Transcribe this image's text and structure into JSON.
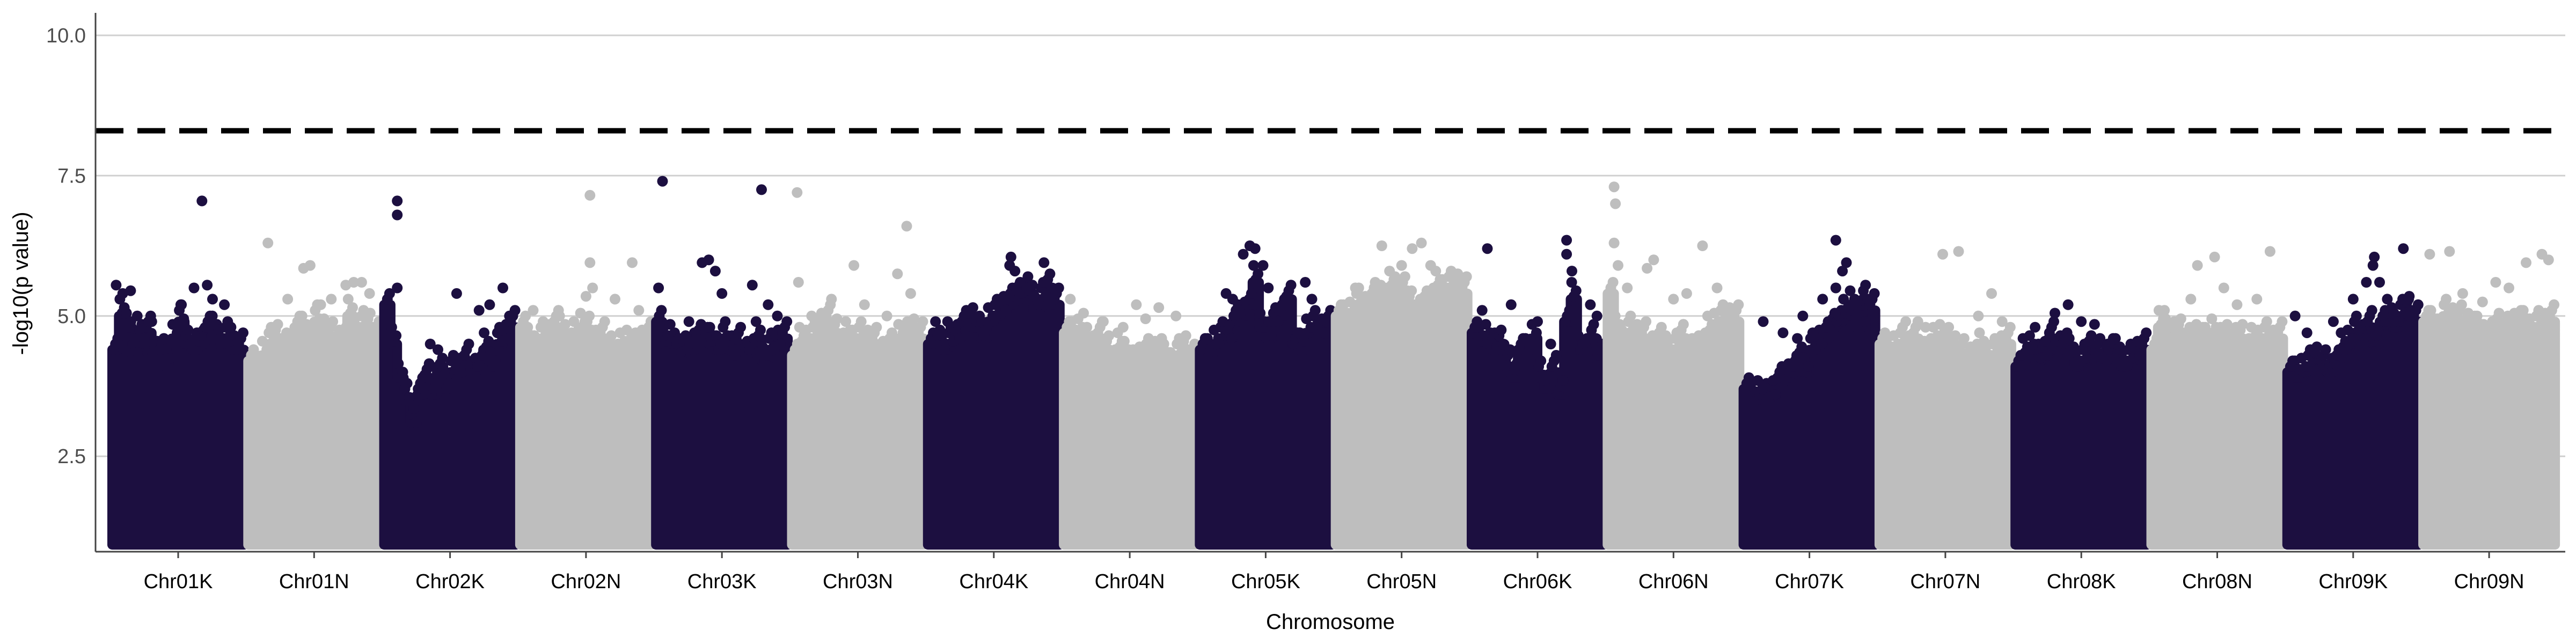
{
  "chart_data": {
    "type": "scatter",
    "subtype": "manhattan",
    "xlabel": "Chromosome",
    "ylabel": "-log10(p value)",
    "ylim": [
      0.8,
      10.4
    ],
    "yticks": [
      2.5,
      5.0,
      7.5,
      10.0
    ],
    "ytick_labels": [
      "2.5",
      "5.0",
      "7.5",
      "10.0"
    ],
    "grid": "horizontal major lines only",
    "threshold_line": {
      "y": 8.3,
      "style": "dashed",
      "color": "#000000"
    },
    "point_base_y": 1.0,
    "colors": {
      "dark": "#1c0f40",
      "light": "#bebebe",
      "grid": "#d0d0d0",
      "axis": "#444444"
    },
    "categories": [
      "Chr01K",
      "Chr01N",
      "Chr02K",
      "Chr02N",
      "Chr03K",
      "Chr03N",
      "Chr04K",
      "Chr04N",
      "Chr05K",
      "Chr05N",
      "Chr06K",
      "Chr06N",
      "Chr07K",
      "Chr07N",
      "Chr08K",
      "Chr08N",
      "Chr09K",
      "Chr09N"
    ],
    "series": [
      {
        "category": "Chr01K",
        "color": "dark",
        "band_top": [
          4.4,
          5.0,
          4.8,
          4.3,
          4.6,
          4.7,
          4.3,
          4.4,
          4.1,
          4.6,
          4.9,
          4.5,
          4.4,
          4.5,
          4.8,
          4.7,
          4.5,
          4.6,
          4.4,
          4.4
        ],
        "outliers": [
          [
            0.03,
            5.55
          ],
          [
            0.08,
            5.4
          ],
          [
            0.14,
            5.45
          ],
          [
            0.19,
            5.0
          ],
          [
            0.3,
            4.9
          ],
          [
            0.52,
            5.2
          ],
          [
            0.62,
            5.5
          ],
          [
            0.72,
            5.55
          ],
          [
            0.76,
            5.3
          ],
          [
            0.85,
            5.2
          ],
          [
            0.9,
            4.8
          ],
          [
            0.68,
            7.05
          ]
        ]
      },
      {
        "category": "Chr01N",
        "color": "light",
        "band_top": [
          4.2,
          4.0,
          4.3,
          4.5,
          4.6,
          4.4,
          4.4,
          4.8,
          4.7,
          4.4,
          4.9,
          4.7,
          4.6,
          4.5,
          4.6,
          5.0,
          4.7,
          4.8,
          4.8,
          4.6
        ],
        "outliers": [
          [
            0.15,
            6.3
          ],
          [
            0.3,
            5.3
          ],
          [
            0.42,
            5.85
          ],
          [
            0.47,
            5.9
          ],
          [
            0.55,
            5.2
          ],
          [
            0.63,
            5.3
          ],
          [
            0.74,
            5.55
          ],
          [
            0.8,
            5.6
          ],
          [
            0.86,
            5.6
          ],
          [
            0.92,
            5.4
          ]
        ]
      },
      {
        "category": "Chr02K",
        "color": "dark",
        "band_top": [
          5.2,
          4.5,
          3.9,
          3.5,
          3.1,
          3.6,
          3.9,
          3.6,
          4.1,
          3.7,
          4.0,
          4.0,
          4.2,
          4.0,
          4.1,
          4.4,
          4.1,
          4.5,
          4.6,
          4.8
        ],
        "outliers": [
          [
            0.1,
            7.05
          ],
          [
            0.1,
            6.8
          ],
          [
            0.1,
            5.5
          ],
          [
            0.35,
            4.5
          ],
          [
            0.55,
            5.4
          ],
          [
            0.72,
            5.1
          ],
          [
            0.8,
            5.2
          ],
          [
            0.9,
            5.5
          ],
          [
            0.95,
            5.0
          ]
        ]
      },
      {
        "category": "Chr02N",
        "color": "light",
        "band_top": [
          4.8,
          4.5,
          4.4,
          4.6,
          4.6,
          4.8,
          4.6,
          4.5,
          4.6,
          4.8,
          4.7,
          4.5,
          4.6,
          4.4,
          4.3,
          4.4,
          4.5,
          4.4,
          4.5,
          4.6
        ],
        "outliers": [
          [
            0.1,
            5.1
          ],
          [
            0.3,
            5.0
          ],
          [
            0.5,
            5.35
          ],
          [
            0.53,
            7.15
          ],
          [
            0.53,
            5.95
          ],
          [
            0.55,
            5.5
          ],
          [
            0.72,
            5.3
          ],
          [
            0.85,
            5.95
          ],
          [
            0.9,
            5.1
          ]
        ]
      },
      {
        "category": "Chr03K",
        "color": "dark",
        "band_top": [
          4.9,
          4.5,
          4.6,
          4.3,
          4.4,
          4.4,
          4.6,
          4.6,
          4.5,
          4.4,
          4.6,
          4.4,
          4.5,
          4.3,
          4.4,
          4.6,
          4.2,
          4.4,
          4.5,
          4.6
        ],
        "outliers": [
          [
            0.05,
            7.4
          ],
          [
            0.02,
            5.5
          ],
          [
            0.25,
            4.9
          ],
          [
            0.35,
            5.95
          ],
          [
            0.4,
            6.0
          ],
          [
            0.45,
            5.8
          ],
          [
            0.5,
            5.4
          ],
          [
            0.6,
            4.3
          ],
          [
            0.73,
            5.55
          ],
          [
            0.8,
            7.25
          ],
          [
            0.85,
            5.2
          ],
          [
            0.92,
            5.0
          ]
        ]
      },
      {
        "category": "Chr03N",
        "color": "light",
        "band_top": [
          4.3,
          4.5,
          4.5,
          4.6,
          4.8,
          4.9,
          4.7,
          4.5,
          4.6,
          4.5,
          4.6,
          4.5,
          4.5,
          4.3,
          4.4,
          4.4,
          4.6,
          4.6,
          4.7,
          4.6
        ],
        "outliers": [
          [
            0.04,
            7.2
          ],
          [
            0.05,
            5.6
          ],
          [
            0.15,
            5.0
          ],
          [
            0.3,
            5.3
          ],
          [
            0.47,
            5.9
          ],
          [
            0.55,
            5.2
          ],
          [
            0.72,
            5.0
          ],
          [
            0.8,
            5.75
          ],
          [
            0.87,
            6.6
          ],
          [
            0.9,
            5.4
          ]
        ]
      },
      {
        "category": "Chr04K",
        "color": "dark",
        "band_top": [
          4.5,
          4.6,
          4.4,
          4.5,
          4.6,
          4.8,
          4.9,
          4.8,
          4.6,
          4.9,
          5.0,
          5.1,
          5.2,
          5.3,
          5.4,
          5.4,
          5.1,
          5.3,
          5.5,
          5.2
        ],
        "outliers": [
          [
            0.15,
            4.9
          ],
          [
            0.3,
            5.05
          ],
          [
            0.5,
            5.0
          ],
          [
            0.62,
            5.9
          ],
          [
            0.63,
            6.05
          ],
          [
            0.66,
            5.8
          ],
          [
            0.7,
            5.6
          ],
          [
            0.75,
            5.5
          ],
          [
            0.88,
            5.95
          ],
          [
            0.92,
            5.2
          ]
        ]
      },
      {
        "category": "Chr04N",
        "color": "light",
        "band_top": [
          4.7,
          4.6,
          4.7,
          4.5,
          4.4,
          4.6,
          4.4,
          4.2,
          4.4,
          4.3,
          4.1,
          4.2,
          4.3,
          4.3,
          4.4,
          4.2,
          4.1,
          4.3,
          4.4,
          4.2
        ],
        "outliers": [
          [
            0.05,
            5.3
          ],
          [
            0.15,
            5.05
          ],
          [
            0.3,
            4.9
          ],
          [
            0.45,
            4.8
          ],
          [
            0.55,
            5.2
          ],
          [
            0.62,
            4.95
          ],
          [
            0.72,
            5.15
          ],
          [
            0.85,
            5.0
          ]
        ]
      },
      {
        "category": "Chr05K",
        "color": "dark",
        "band_top": [
          4.4,
          4.3,
          4.5,
          4.6,
          4.6,
          4.9,
          5.0,
          5.2,
          5.6,
          4.8,
          4.6,
          4.9,
          5.0,
          5.3,
          4.5,
          4.4,
          4.7,
          4.8,
          4.7,
          4.8
        ],
        "outliers": [
          [
            0.2,
            5.4
          ],
          [
            0.25,
            5.3
          ],
          [
            0.33,
            6.1
          ],
          [
            0.38,
            6.25
          ],
          [
            0.42,
            6.2
          ],
          [
            0.48,
            5.9
          ],
          [
            0.52,
            5.5
          ],
          [
            0.65,
            5.2
          ],
          [
            0.8,
            5.6
          ],
          [
            0.85,
            5.3
          ]
        ]
      },
      {
        "category": "Chr05N",
        "color": "light",
        "band_top": [
          5.0,
          4.9,
          5.0,
          5.2,
          5.1,
          5.2,
          5.3,
          5.3,
          5.5,
          5.4,
          5.4,
          5.2,
          5.0,
          5.2,
          5.3,
          5.5,
          5.4,
          5.5,
          5.5,
          5.4
        ],
        "outliers": [
          [
            0.15,
            5.5
          ],
          [
            0.3,
            5.6
          ],
          [
            0.35,
            6.25
          ],
          [
            0.45,
            5.7
          ],
          [
            0.5,
            5.9
          ],
          [
            0.58,
            6.2
          ],
          [
            0.65,
            6.3
          ],
          [
            0.72,
            5.9
          ],
          [
            0.8,
            5.6
          ],
          [
            0.9,
            5.65
          ],
          [
            0.95,
            5.6
          ]
        ]
      },
      {
        "category": "Chr06K",
        "color": "dark",
        "band_top": [
          4.7,
          4.5,
          4.6,
          4.4,
          4.5,
          4.1,
          3.9,
          4.4,
          4.3,
          4.6,
          3.9,
          3.7,
          4.0,
          3.6,
          4.9,
          5.3,
          4.4,
          4.3,
          4.6,
          4.2
        ],
        "outliers": [
          [
            0.12,
            6.2
          ],
          [
            0.08,
            5.1
          ],
          [
            0.3,
            5.2
          ],
          [
            0.5,
            4.9
          ],
          [
            0.6,
            4.5
          ],
          [
            0.72,
            6.35
          ],
          [
            0.72,
            6.1
          ],
          [
            0.76,
            5.8
          ],
          [
            0.9,
            5.2
          ],
          [
            0.95,
            5.0
          ]
        ]
      },
      {
        "category": "Chr06N",
        "color": "light",
        "band_top": [
          5.4,
          4.7,
          4.5,
          4.7,
          4.6,
          4.6,
          4.4,
          4.5,
          4.5,
          4.3,
          4.4,
          4.6,
          4.3,
          4.4,
          4.5,
          4.7,
          4.8,
          4.9,
          4.9,
          4.9
        ],
        "outliers": [
          [
            0.05,
            7.3
          ],
          [
            0.06,
            7.0
          ],
          [
            0.05,
            6.3
          ],
          [
            0.08,
            5.9
          ],
          [
            0.15,
            5.5
          ],
          [
            0.3,
            5.85
          ],
          [
            0.35,
            6.0
          ],
          [
            0.5,
            5.3
          ],
          [
            0.6,
            5.4
          ],
          [
            0.72,
            6.25
          ],
          [
            0.83,
            5.5
          ]
        ]
      },
      {
        "category": "Chr07K",
        "color": "dark",
        "band_top": [
          3.7,
          3.5,
          3.6,
          3.5,
          3.6,
          3.8,
          3.9,
          4.0,
          4.3,
          4.0,
          4.4,
          4.5,
          4.6,
          4.8,
          4.9,
          5.0,
          5.2,
          4.8,
          5.3,
          5.1
        ],
        "outliers": [
          [
            0.15,
            4.9
          ],
          [
            0.3,
            4.7
          ],
          [
            0.45,
            5.0
          ],
          [
            0.6,
            5.3
          ],
          [
            0.7,
            5.5
          ],
          [
            0.75,
            5.8
          ],
          [
            0.78,
            5.95
          ],
          [
            0.85,
            5.2
          ],
          [
            0.9,
            5.0
          ],
          [
            0.92,
            4.9
          ],
          [
            0.7,
            6.35
          ]
        ]
      },
      {
        "category": "Chr07N",
        "color": "light",
        "band_top": [
          4.5,
          4.3,
          4.4,
          4.5,
          4.4,
          4.6,
          4.3,
          4.4,
          4.5,
          4.6,
          4.5,
          4.4,
          4.3,
          4.2,
          4.3,
          4.4,
          4.2,
          4.3,
          4.4,
          4.5
        ],
        "outliers": [
          [
            0.2,
            4.9
          ],
          [
            0.35,
            4.8
          ],
          [
            0.48,
            6.1
          ],
          [
            0.6,
            6.15
          ],
          [
            0.75,
            5.0
          ],
          [
            0.85,
            5.4
          ],
          [
            0.93,
            4.9
          ]
        ]
      },
      {
        "category": "Chr08K",
        "color": "dark",
        "band_top": [
          4.1,
          4.3,
          4.4,
          4.2,
          4.3,
          4.6,
          4.4,
          4.5,
          4.3,
          4.1,
          4.2,
          4.4,
          4.3,
          4.2,
          4.4,
          4.3,
          4.1,
          4.2,
          4.3,
          4.4
        ],
        "outliers": [
          [
            0.15,
            4.8
          ],
          [
            0.3,
            5.05
          ],
          [
            0.4,
            5.2
          ],
          [
            0.5,
            4.9
          ],
          [
            0.6,
            4.85
          ],
          [
            0.7,
            4.5
          ],
          [
            0.8,
            4.4
          ]
        ]
      },
      {
        "category": "Chr08N",
        "color": "light",
        "band_top": [
          4.4,
          4.8,
          4.7,
          4.6,
          4.7,
          4.5,
          4.6,
          4.6,
          4.5,
          4.7,
          4.5,
          4.6,
          4.5,
          4.6,
          4.4,
          4.5,
          4.5,
          4.6,
          4.5,
          4.6
        ],
        "outliers": [
          [
            0.1,
            5.1
          ],
          [
            0.3,
            5.3
          ],
          [
            0.35,
            5.9
          ],
          [
            0.48,
            6.05
          ],
          [
            0.55,
            5.5
          ],
          [
            0.65,
            5.2
          ],
          [
            0.8,
            5.3
          ],
          [
            0.9,
            6.15
          ]
        ]
      },
      {
        "category": "Chr09K",
        "color": "dark",
        "band_top": [
          4.0,
          3.9,
          4.0,
          4.1,
          4.2,
          4.1,
          4.0,
          4.2,
          4.4,
          4.5,
          4.7,
          4.6,
          4.8,
          4.5,
          4.9,
          5.0,
          4.8,
          5.0,
          5.1,
          4.9
        ],
        "outliers": [
          [
            0.06,
            5.0
          ],
          [
            0.15,
            4.7
          ],
          [
            0.35,
            4.9
          ],
          [
            0.5,
            5.3
          ],
          [
            0.6,
            5.6
          ],
          [
            0.65,
            5.9
          ],
          [
            0.66,
            6.05
          ],
          [
            0.7,
            5.6
          ],
          [
            0.88,
            6.2
          ],
          [
            0.92,
            5.3
          ]
        ]
      },
      {
        "category": "Chr09N",
        "color": "light",
        "band_top": [
          4.9,
          4.8,
          4.7,
          5.0,
          4.9,
          4.9,
          4.8,
          4.8,
          4.7,
          4.6,
          4.6,
          4.8,
          4.7,
          4.8,
          4.9,
          4.8,
          4.7,
          4.8,
          4.8,
          4.9
        ],
        "outliers": [
          [
            0.05,
            6.1
          ],
          [
            0.2,
            6.15
          ],
          [
            0.3,
            5.4
          ],
          [
            0.45,
            5.25
          ],
          [
            0.55,
            5.6
          ],
          [
            0.65,
            5.5
          ],
          [
            0.78,
            5.95
          ],
          [
            0.9,
            6.1
          ],
          [
            0.95,
            6.0
          ]
        ]
      }
    ]
  }
}
